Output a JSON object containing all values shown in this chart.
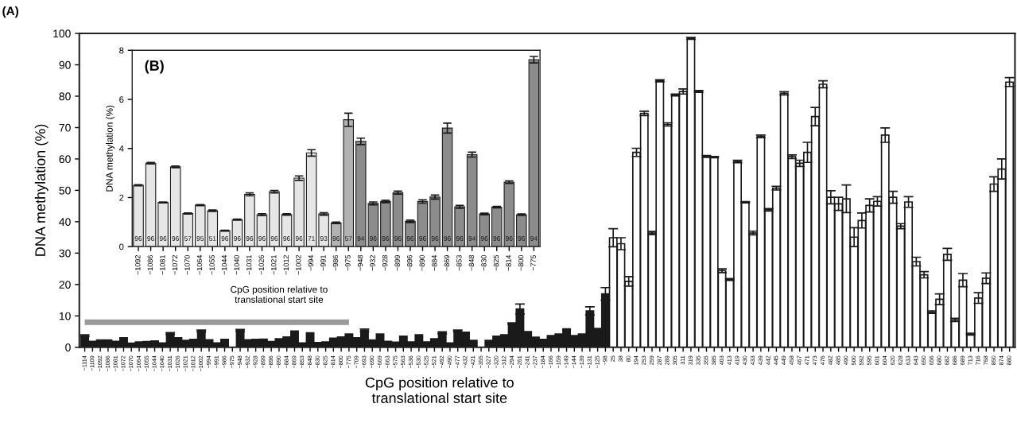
{
  "chart_data": [
    {
      "type": "bar",
      "xlabel": "CpG position relative to\ntranslational start site",
      "ylabel": "DNA methylation (%)",
      "annotations": [
        "(A)"
      ],
      "ylim": [
        0,
        100
      ],
      "yticks": [
        0,
        10,
        20,
        30,
        40,
        50,
        60,
        70,
        80,
        90,
        100
      ],
      "grid": false,
      "categories": [
        "−1114",
        "−1109",
        "−1092",
        "−1086",
        "−1081",
        "−1072",
        "−1070",
        "−1064",
        "−1055",
        "−1044",
        "−1040",
        "−1031",
        "−1026",
        "−1021",
        "−1012",
        "−1002",
        "−994",
        "−991",
        "−986",
        "−975",
        "−948",
        "−932",
        "−928",
        "−899",
        "−896",
        "−890",
        "−884",
        "−869",
        "−853",
        "−848",
        "−830",
        "−825",
        "−814",
        "−800",
        "−775",
        "−709",
        "−693",
        "−690",
        "−669",
        "−663",
        "−575",
        "−563",
        "−536",
        "−530",
        "−525",
        "−521",
        "−492",
        "−490",
        "−477",
        "−432",
        "−421",
        "−355",
        "−327",
        "−320",
        "−312",
        "−294",
        "−261",
        "−241",
        "−237",
        "−184",
        "−166",
        "−159",
        "−149",
        "−144",
        "−139",
        "−131",
        "−125",
        "−98",
        "25",
        "38",
        "80",
        "194",
        "253",
        "259",
        "287",
        "289",
        "305",
        "311",
        "319",
        "335",
        "355",
        "385",
        "403",
        "413",
        "419",
        "430",
        "433",
        "439",
        "442",
        "445",
        "449",
        "458",
        "467",
        "471",
        "473",
        "476",
        "482",
        "485",
        "490",
        "500",
        "592",
        "595",
        "601",
        "604",
        "620",
        "628",
        "633",
        "643",
        "650",
        "656",
        "680",
        "682",
        "686",
        "689",
        "713",
        "716",
        "768",
        "850",
        "874",
        "880"
      ],
      "series": [
        {
          "colors": [
            "#1a1a1a",
            "#1a1a1a",
            "#1a1a1a",
            "#1a1a1a",
            "#1a1a1a",
            "#1a1a1a",
            "#1a1a1a",
            "#1a1a1a",
            "#1a1a1a",
            "#1a1a1a",
            "#1a1a1a",
            "#1a1a1a",
            "#1a1a1a",
            "#1a1a1a",
            "#1a1a1a",
            "#1a1a1a",
            "#1a1a1a",
            "#1a1a1a",
            "#1a1a1a",
            "#1a1a1a",
            "#1a1a1a",
            "#1a1a1a",
            "#1a1a1a",
            "#1a1a1a",
            "#1a1a1a",
            "#1a1a1a",
            "#1a1a1a",
            "#1a1a1a",
            "#1a1a1a",
            "#1a1a1a",
            "#1a1a1a",
            "#1a1a1a",
            "#1a1a1a",
            "#1a1a1a",
            "#1a1a1a",
            "#1a1a1a",
            "#1a1a1a",
            "#1a1a1a",
            "#1a1a1a",
            "#1a1a1a",
            "#1a1a1a",
            "#1a1a1a",
            "#1a1a1a",
            "#1a1a1a",
            "#1a1a1a",
            "#1a1a1a",
            "#1a1a1a",
            "#1a1a1a",
            "#1a1a1a",
            "#1a1a1a",
            "#1a1a1a",
            "#1a1a1a",
            "#1a1a1a",
            "#1a1a1a",
            "#1a1a1a",
            "#1a1a1a",
            "#1a1a1a",
            "#1a1a1a",
            "#1a1a1a",
            "#1a1a1a",
            "#1a1a1a",
            "#1a1a1a",
            "#1a1a1a",
            "#1a1a1a",
            "#1a1a1a",
            "#1a1a1a",
            "#1a1a1a",
            "#1a1a1a",
            "#ffffff",
            "#ffffff",
            "#ffffff",
            "#ffffff",
            "#ffffff",
            "#ffffff",
            "#ffffff",
            "#ffffff",
            "#ffffff",
            "#ffffff",
            "#ffffff",
            "#ffffff",
            "#ffffff",
            "#ffffff",
            "#ffffff",
            "#ffffff",
            "#ffffff",
            "#ffffff",
            "#ffffff",
            "#ffffff",
            "#ffffff",
            "#ffffff",
            "#ffffff",
            "#ffffff",
            "#ffffff",
            "#ffffff",
            "#ffffff",
            "#ffffff",
            "#ffffff",
            "#ffffff",
            "#ffffff",
            "#ffffff",
            "#ffffff",
            "#ffffff",
            "#ffffff",
            "#ffffff",
            "#ffffff",
            "#ffffff",
            "#ffffff",
            "#ffffff",
            "#ffffff",
            "#ffffff",
            "#ffffff",
            "#ffffff",
            "#ffffff",
            "#ffffff",
            "#ffffff",
            "#ffffff",
            "#ffffff",
            "#ffffff",
            "#ffffff",
            "#ffffff"
          ],
          "values": [
            3.7,
            1.9,
            2.3,
            2.3,
            1.9,
            3.0,
            1.3,
            1.7,
            1.8,
            2.0,
            1.4,
            4.4,
            3.0,
            2.2,
            2.5,
            5.2,
            2.4,
            1.4,
            2.5,
            0,
            5.4,
            2.4,
            2.5,
            2.6,
            1.8,
            2.7,
            3.3,
            5.2,
            1.4,
            4.6,
            1.5,
            1.7,
            2.9,
            3.3,
            4.2,
            3.0,
            5.4,
            2.3,
            4.2,
            1.9,
            1.6,
            3.5,
            1.7,
            4.0,
            1.7,
            2.7,
            4.6,
            1.4,
            5.2,
            4.8,
            2.2,
            0,
            2.2,
            3.5,
            4.0,
            7.6,
            12.2,
            5.0,
            3.2,
            2.5,
            3.7,
            4.2,
            5.9,
            3.7,
            4.2,
            11.6,
            5.7,
            17.0,
            34.9,
            33.0,
            21.0,
            62.1,
            74.5,
            36.4,
            84.9,
            71.0,
            80.4,
            81.5,
            98.4,
            81.5,
            60.8,
            60.6,
            24.4,
            21.6,
            59.2,
            46.2,
            36.4,
            67.2,
            43.8,
            50.7,
            80.9,
            60.7,
            58.6,
            62.1,
            73.5,
            83.8,
            47.8,
            45.7,
            47.3,
            35.1,
            40.4,
            45.2,
            46.5,
            67.6,
            47.8,
            38.6,
            46.3,
            27.3,
            23.1,
            11.2,
            15.3,
            29.6,
            8.7,
            21.4,
            4.2,
            15.7,
            22.0,
            52.0,
            56.8,
            84.5
          ],
          "errors": [
            0.3,
            null,
            null,
            null,
            null,
            null,
            null,
            null,
            null,
            null,
            null,
            0.3,
            null,
            null,
            null,
            0.3,
            null,
            null,
            null,
            null,
            0.3,
            null,
            null,
            null,
            null,
            null,
            null,
            null,
            null,
            null,
            null,
            null,
            null,
            null,
            null,
            null,
            0.4,
            null,
            null,
            null,
            null,
            null,
            null,
            null,
            null,
            null,
            0.3,
            null,
            0.3,
            null,
            null,
            null,
            null,
            null,
            null,
            0.2,
            1.6,
            null,
            null,
            null,
            null,
            null,
            null,
            null,
            null,
            1.3,
            0.3,
            2.0,
            2.9,
            1.9,
            1.5,
            1.3,
            0.7,
            0.5,
            0.3,
            0.5,
            0.3,
            0.8,
            0.3,
            0.3,
            0.3,
            0.2,
            0.6,
            0.3,
            0.4,
            0.2,
            0.6,
            0.4,
            0.4,
            0.6,
            0.5,
            0.6,
            1.0,
            3.2,
            2.9,
            1.1,
            2.1,
            2.1,
            4.4,
            3.0,
            2.4,
            2.1,
            1.5,
            2.3,
            1.9,
            0.8,
            1.7,
            1.4,
            1.0,
            0.4,
            1.7,
            1.9,
            0.5,
            2.1,
            0.3,
            1.7,
            1.7,
            2.3,
            3.2,
            1.4
          ]
        },
        {
          "type": "line",
          "color": "#999999",
          "values": [
            8,
            8,
            8,
            8,
            8,
            8,
            8,
            8,
            8,
            8,
            8,
            8,
            8,
            8,
            8,
            8,
            8,
            8,
            8,
            8,
            8,
            8,
            8,
            8,
            8,
            8,
            8,
            8,
            8,
            8,
            8,
            8,
            8,
            8,
            8,
            null,
            null,
            null,
            null,
            null,
            null,
            null,
            null,
            null,
            null,
            null,
            null,
            null,
            null,
            null,
            null,
            null,
            null,
            null,
            null,
            null,
            null,
            null,
            null,
            null,
            null,
            null,
            null,
            null,
            null,
            null,
            null,
            null,
            null,
            null,
            null,
            null,
            null,
            null,
            null,
            null,
            null,
            null,
            null,
            null,
            null,
            null,
            null,
            null,
            null,
            null,
            null,
            null,
            null,
            null,
            null,
            null,
            null,
            null,
            null,
            null,
            null,
            null,
            null,
            null,
            null,
            null,
            null,
            null,
            null,
            null,
            null,
            null,
            null,
            null,
            null,
            null,
            null,
            null,
            null,
            null,
            null,
            null,
            null,
            null
          ]
        }
      ]
    },
    {
      "type": "bar",
      "xlabel": "CpG position relative to\ntranslational start site",
      "ylabel": "DNA methylation (%)",
      "ylim": [
        0,
        8
      ],
      "yticks": [
        0,
        2,
        4,
        6,
        8
      ],
      "grid": false,
      "categories": [
        "−1092",
        "−1086",
        "−1081",
        "−1072",
        "−1070",
        "−1064",
        "−1055",
        "−1044",
        "−1040",
        "−1031",
        "−1026",
        "−1021",
        "−1012",
        "−1002",
        "−994",
        "−991",
        "−986",
        "−975",
        "−948",
        "−932",
        "−928",
        "−899",
        "−896",
        "−890",
        "−884",
        "−869",
        "−853",
        "−848",
        "−830",
        "−825",
        "−814",
        "−800",
        "−775"
      ],
      "series": [
        {
          "colors": [
            "#e6e6e6",
            "#e6e6e6",
            "#e6e6e6",
            "#e6e6e6",
            "#e6e6e6",
            "#e6e6e6",
            "#e6e6e6",
            "#e6e6e6",
            "#e6e6e6",
            "#e6e6e6",
            "#e6e6e6",
            "#e6e6e6",
            "#e6e6e6",
            "#e6e6e6",
            "#e6e6e6",
            "#e6e6e6",
            "#b3b3b3",
            "#b3b3b3",
            "#8c8c8c",
            "#8c8c8c",
            "#8c8c8c",
            "#8c8c8c",
            "#8c8c8c",
            "#8c8c8c",
            "#8c8c8c",
            "#8c8c8c",
            "#8c8c8c",
            "#8c8c8c",
            "#8c8c8c",
            "#8c8c8c",
            "#8c8c8c",
            "#8c8c8c",
            "#8c8c8c"
          ],
          "values": [
            2.5,
            3.4,
            1.8,
            3.25,
            1.35,
            1.69,
            1.46,
            0.65,
            1.1,
            2.13,
            1.3,
            2.24,
            1.31,
            2.79,
            3.82,
            1.33,
            0.97,
            5.17,
            4.29,
            1.76,
            1.84,
            2.2,
            1.03,
            1.84,
            2.02,
            4.83,
            1.62,
            3.75,
            1.33,
            1.61,
            2.63,
            1.3,
            7.62
          ],
          "errors": [
            0.02,
            0.03,
            0.02,
            0.03,
            0.02,
            0.02,
            0.03,
            0.02,
            0.02,
            0.06,
            0.04,
            0.05,
            0.03,
            0.09,
            0.13,
            0.05,
            0.03,
            0.27,
            0.13,
            0.06,
            0.05,
            0.06,
            0.05,
            0.07,
            0.08,
            0.2,
            0.06,
            0.1,
            0.03,
            0.03,
            0.05,
            0.03,
            0.13
          ]
        }
      ],
      "annotations": [
        "(B)",
        {
          "text": "96",
          "x": "−1092",
          "y": 0
        },
        {
          "text": "96",
          "x": "−1086",
          "y": 0
        },
        {
          "text": "96",
          "x": "−1081",
          "y": 0
        },
        {
          "text": "96",
          "x": "−1072",
          "y": 0
        },
        {
          "text": "57",
          "x": "−1070",
          "y": 0
        },
        {
          "text": "95",
          "x": "−1064",
          "y": 0
        },
        {
          "text": "51",
          "x": "−1055",
          "y": 0
        },
        {
          "text": "96",
          "x": "−1044",
          "y": 0
        },
        {
          "text": "96",
          "x": "−1040",
          "y": 0
        },
        {
          "text": "96",
          "x": "−1031",
          "y": 0
        },
        {
          "text": "96",
          "x": "−1026",
          "y": 0
        },
        {
          "text": "96",
          "x": "−1021",
          "y": 0
        },
        {
          "text": "96",
          "x": "−1012",
          "y": 0
        },
        {
          "text": "96",
          "x": "−1002",
          "y": 0
        },
        {
          "text": "71",
          "x": "−994",
          "y": 0
        },
        {
          "text": "93",
          "x": "−991",
          "y": 0
        },
        {
          "text": "96",
          "x": "−986",
          "y": 0
        },
        {
          "text": "57",
          "x": "−975",
          "y": 0
        },
        {
          "text": "94",
          "x": "−948",
          "y": 0
        },
        {
          "text": "96",
          "x": "−932",
          "y": 0
        },
        {
          "text": "96",
          "x": "−928",
          "y": 0
        },
        {
          "text": "96",
          "x": "−899",
          "y": 0
        },
        {
          "text": "96",
          "x": "−896",
          "y": 0
        },
        {
          "text": "96",
          "x": "−890",
          "y": 0
        },
        {
          "text": "96",
          "x": "−884",
          "y": 0
        },
        {
          "text": "96",
          "x": "−869",
          "y": 0
        },
        {
          "text": "96",
          "x": "−853",
          "y": 0
        },
        {
          "text": "94",
          "x": "−848",
          "y": 0
        },
        {
          "text": "96",
          "x": "−830",
          "y": 0
        },
        {
          "text": "96",
          "x": "−825",
          "y": 0
        },
        {
          "text": "96",
          "x": "−814",
          "y": 0
        },
        {
          "text": "96",
          "x": "−800",
          "y": 0
        },
        {
          "text": "94",
          "x": "−775",
          "y": 0
        }
      ]
    }
  ]
}
